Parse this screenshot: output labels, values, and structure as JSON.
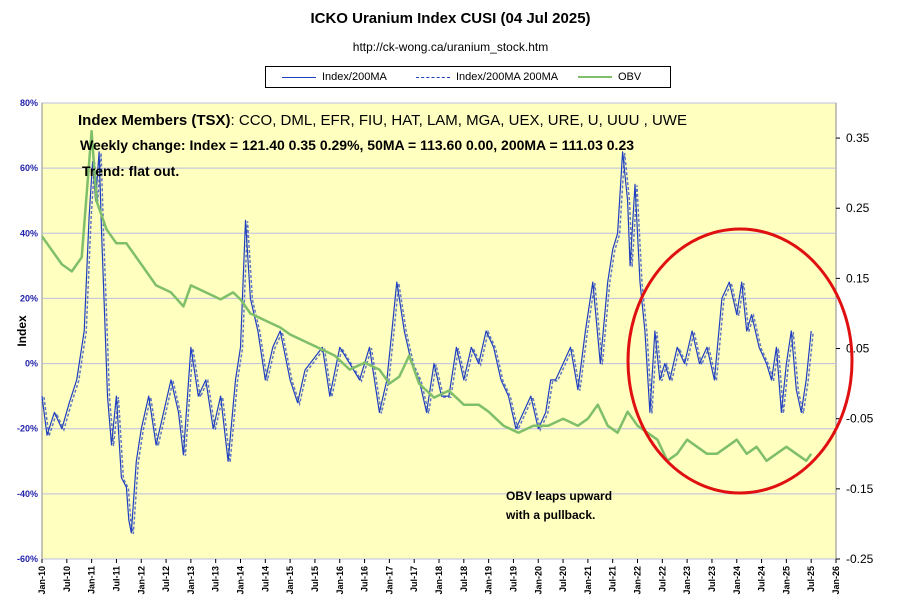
{
  "title": "ICKO Uranium Index CUSI  (04 Jul 2025)",
  "subtitle": "http://ck-wong.ca/uranium_stock.htm",
  "legend": [
    {
      "label": "Index/200MA",
      "color": "#1f3fbf",
      "dash": "none"
    },
    {
      "label": "Index/200MA  200MA",
      "color": "#1f3fbf",
      "dash": "3,2"
    },
    {
      "label": "OBV",
      "color": "#7fbf6a",
      "dash": "none"
    }
  ],
  "annotations": {
    "members_label": "Index Members (TSX)",
    "members_list": ": CCO, DML, EFR, FIU, HAT, LAM, MGA, UEX, URE, U, UUU , UWE",
    "weekly_change": "Weekly change:  Index = 121.40  0.35  0.29%, 50MA =  113.60 0.00,  200MA = 111.03  0.23",
    "trend": "Trend:  flat out.",
    "obv_note_line1": "OBV leaps upward",
    "obv_note_line2": "with a pullback."
  },
  "colors": {
    "plot_bg": "#ffffc0",
    "index": "#1f3fbf",
    "obv": "#7fbf6a",
    "circle": "#e01010",
    "axis_text": "#2222aa",
    "right_axis_text": "#000000"
  },
  "chart_data": {
    "type": "line",
    "xlabel": "",
    "ylabel": "Index",
    "ylim": [
      -60,
      80
    ],
    "y2lim": [
      -0.25,
      0.4
    ],
    "grid": true,
    "legend_position": "top",
    "yticks": [
      "80%",
      "60%",
      "40%",
      "20%",
      "0%",
      "-20%",
      "-40%",
      "-60%"
    ],
    "y2ticks": [
      "0.35",
      "0.25",
      "0.15",
      "0.05",
      "-0.05",
      "-0.15",
      "-0.25"
    ],
    "xticks": [
      "Jan-10",
      "Jul-10",
      "Jan-11",
      "Jul-11",
      "Jan-12",
      "Jul-12",
      "Jan-13",
      "Jul-13",
      "Jan-14",
      "Jul-14",
      "Jan-15",
      "Jul-15",
      "Jan-16",
      "Jul-16",
      "Jan-17",
      "Jul-17",
      "Jan-18",
      "Jul-18",
      "Jan-19",
      "Jul-19",
      "Jan-20",
      "Jul-20",
      "Jan-21",
      "Jul-21",
      "Jan-22",
      "Jul-22",
      "Jan-23",
      "Jul-23",
      "Jan-24",
      "Jul-24",
      "Jan-25",
      "Jul-25",
      "Jan-26"
    ],
    "x_range": [
      "2010-01",
      "2026-01"
    ],
    "series": [
      {
        "name": "Index/200MA",
        "axis": "left",
        "x": [
          2010.0,
          2010.1,
          2010.25,
          2010.4,
          2010.55,
          2010.7,
          2010.85,
          2010.95,
          2011.02,
          2011.08,
          2011.15,
          2011.2,
          2011.25,
          2011.32,
          2011.4,
          2011.5,
          2011.6,
          2011.7,
          2011.75,
          2011.8,
          2011.9,
          2012.0,
          2012.15,
          2012.3,
          2012.45,
          2012.6,
          2012.75,
          2012.85,
          2013.0,
          2013.15,
          2013.3,
          2013.45,
          2013.6,
          2013.75,
          2013.9,
          2014.0,
          2014.1,
          2014.2,
          2014.35,
          2014.5,
          2014.65,
          2014.8,
          2015.0,
          2015.15,
          2015.3,
          2015.5,
          2015.65,
          2015.8,
          2016.0,
          2016.2,
          2016.4,
          2016.6,
          2016.8,
          2016.95,
          2017.05,
          2017.15,
          2017.3,
          2017.45,
          2017.6,
          2017.75,
          2017.9,
          2018.05,
          2018.2,
          2018.35,
          2018.5,
          2018.65,
          2018.8,
          2018.95,
          2019.1,
          2019.25,
          2019.4,
          2019.55,
          2019.7,
          2019.85,
          2020.0,
          2020.15,
          2020.25,
          2020.35,
          2020.5,
          2020.65,
          2020.8,
          2020.95,
          2021.1,
          2021.25,
          2021.4,
          2021.5,
          2021.6,
          2021.7,
          2021.8,
          2021.85,
          2021.95,
          2022.05,
          2022.15,
          2022.25,
          2022.35,
          2022.45,
          2022.55,
          2022.65,
          2022.8,
          2022.95,
          2023.1,
          2023.25,
          2023.4,
          2023.55,
          2023.7,
          2023.85,
          2024.0,
          2024.1,
          2024.2,
          2024.3,
          2024.45,
          2024.6,
          2024.7,
          2024.8,
          2024.9,
          2025.0,
          2025.1,
          2025.2,
          2025.3,
          2025.4,
          2025.5
        ],
        "y": [
          -10,
          -22,
          -15,
          -20,
          -12,
          -5,
          10,
          45,
          62,
          50,
          65,
          40,
          20,
          -10,
          -25,
          -10,
          -35,
          -38,
          -48,
          -52,
          -30,
          -20,
          -10,
          -25,
          -15,
          -5,
          -15,
          -28,
          5,
          -10,
          -5,
          -20,
          -10,
          -30,
          -5,
          5,
          44,
          20,
          10,
          -5,
          5,
          10,
          -5,
          -12,
          -2,
          2,
          5,
          -10,
          5,
          0,
          -5,
          5,
          -15,
          -5,
          10,
          25,
          10,
          0,
          -5,
          -15,
          0,
          -10,
          -10,
          5,
          -5,
          5,
          0,
          10,
          5,
          -5,
          -10,
          -20,
          -15,
          -10,
          -20,
          -15,
          -5,
          -5,
          0,
          5,
          -8,
          10,
          25,
          0,
          25,
          35,
          40,
          65,
          50,
          30,
          55,
          25,
          10,
          -15,
          10,
          -5,
          0,
          -5,
          5,
          0,
          10,
          0,
          5,
          -5,
          20,
          25,
          15,
          25,
          10,
          15,
          5,
          0,
          -5,
          5,
          -15,
          0,
          10,
          -8,
          -15,
          -5,
          10
        ]
      },
      {
        "name": "OBV",
        "axis": "right",
        "x": [
          2010.0,
          2010.2,
          2010.4,
          2010.6,
          2010.8,
          2011.0,
          2011.1,
          2011.3,
          2011.5,
          2011.7,
          2012.0,
          2012.3,
          2012.6,
          2012.85,
          2013.0,
          2013.3,
          2013.6,
          2013.85,
          2014.0,
          2014.2,
          2014.5,
          2014.8,
          2015.0,
          2015.3,
          2015.6,
          2015.9,
          2016.2,
          2016.5,
          2016.8,
          2017.0,
          2017.2,
          2017.4,
          2017.6,
          2017.9,
          2018.2,
          2018.5,
          2018.8,
          2019.0,
          2019.3,
          2019.6,
          2019.9,
          2020.2,
          2020.5,
          2020.8,
          2021.0,
          2021.2,
          2021.4,
          2021.6,
          2021.8,
          2022.0,
          2022.2,
          2022.4,
          2022.6,
          2022.8,
          2023.0,
          2023.2,
          2023.4,
          2023.6,
          2023.8,
          2024.0,
          2024.2,
          2024.4,
          2024.6,
          2024.8,
          2025.0,
          2025.2,
          2025.4,
          2025.5
        ],
        "y": [
          0.21,
          0.19,
          0.17,
          0.16,
          0.18,
          0.36,
          0.26,
          0.22,
          0.2,
          0.2,
          0.17,
          0.14,
          0.13,
          0.11,
          0.14,
          0.13,
          0.12,
          0.13,
          0.12,
          0.1,
          0.09,
          0.08,
          0.07,
          0.06,
          0.05,
          0.04,
          0.02,
          0.03,
          0.02,
          0.0,
          0.01,
          0.04,
          0.0,
          -0.02,
          -0.01,
          -0.03,
          -0.03,
          -0.04,
          -0.06,
          -0.07,
          -0.06,
          -0.06,
          -0.05,
          -0.06,
          -0.05,
          -0.03,
          -0.06,
          -0.07,
          -0.04,
          -0.06,
          -0.07,
          -0.08,
          -0.11,
          -0.1,
          -0.08,
          -0.09,
          -0.1,
          -0.1,
          -0.09,
          -0.08,
          -0.1,
          -0.09,
          -0.11,
          -0.1,
          -0.09,
          -0.1,
          -0.11,
          -0.1
        ]
      }
    ]
  }
}
